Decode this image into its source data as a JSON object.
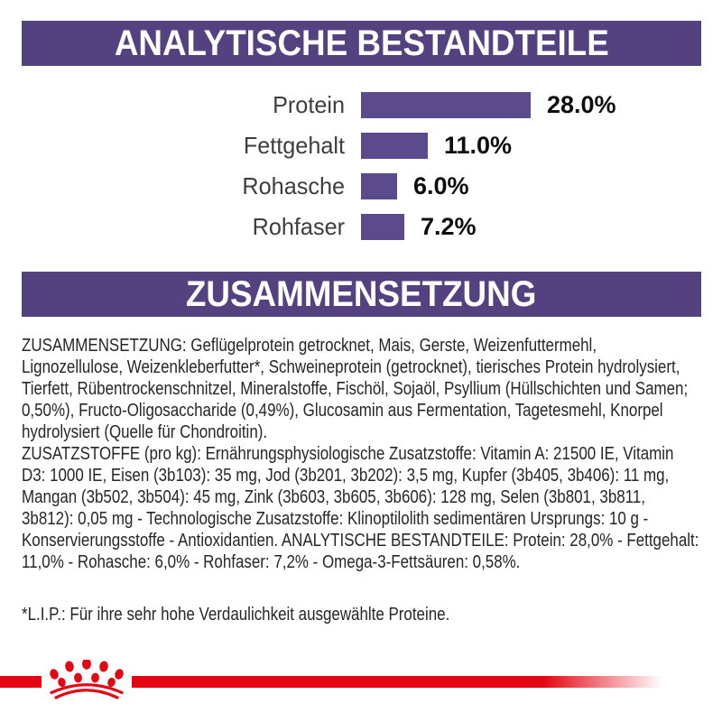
{
  "banners": {
    "analytical": "ANALYTISCHE BESTANDTEILE",
    "composition": "ZUSAMMENSETZUNG"
  },
  "chart_data": {
    "type": "bar",
    "orientation": "horizontal",
    "categories": [
      "Protein",
      "Fettgehalt",
      "Rohasche",
      "Rohfaser"
    ],
    "values": [
      28.0,
      11.0,
      6.0,
      7.2
    ],
    "value_labels": [
      "28.0%",
      "11.0%",
      "6.0%",
      "7.2%"
    ],
    "unit": "%",
    "xlim": [
      0,
      30
    ],
    "grid": false,
    "legend": false,
    "bar_color": "#5b4a8c",
    "value_label_position": "right-of-bar"
  },
  "body": {
    "composition": "ZUSAMMENSETZUNG: Geflügelprotein getrocknet, Mais, Gerste, Weizenfuttermehl, Lignozellulose, Weizenkleberfutter*, Schweineprotein (getrocknet), tierisches Protein hydrolysiert, Tierfett, Rübentrockenschnitzel, Mineralstoffe, Fischöl, Sojaöl, Psyllium (Hüllschichten und Samen; 0,50%), Fructo-Oligosaccharide (0,49%), Glucosamin aus Fermentation, Tagetesmehl, Knorpel hydrolysiert (Quelle für Chondroitin).",
    "additives": "ZUSATZSTOFFE (pro kg): Ernährungsphysiologische Zusatzstoffe: Vitamin A: 21500 IE, Vitamin D3: 1000 IE, Eisen (3b103): 35 mg, Jod (3b201, 3b202): 3,5 mg, Kupfer (3b405, 3b406): 11 mg, Mangan (3b502, 3b504): 45 mg, Zink (3b603, 3b605, 3b606): 128 mg, Selen (3b801, 3b811, 3b812): 0,05 mg - Technologische Zusatzstoffe: Klinoptilolith sedimentären Ursprungs: 10 g - Konservierungsstoffe - Antioxidantien. ANALYTISCHE BESTANDTEILE: Protein: 28,0% - Fettgehalt: 11,0% - Rohasche: 6,0% - Rohfaser: 7,2% - Omega-3-Fettsäuren: 0,58%.",
    "footnote": "*L.I.P.: Für ihre sehr hohe Verdaulichkeit ausgewählte Proteine."
  },
  "footer": {
    "logo_icon": "royal-canin-crown-icon"
  },
  "colors": {
    "banner_purple": "#54417f",
    "bar_purple": "#5b4a8c",
    "accent_red": "#e30613",
    "text_dark": "#262626"
  }
}
